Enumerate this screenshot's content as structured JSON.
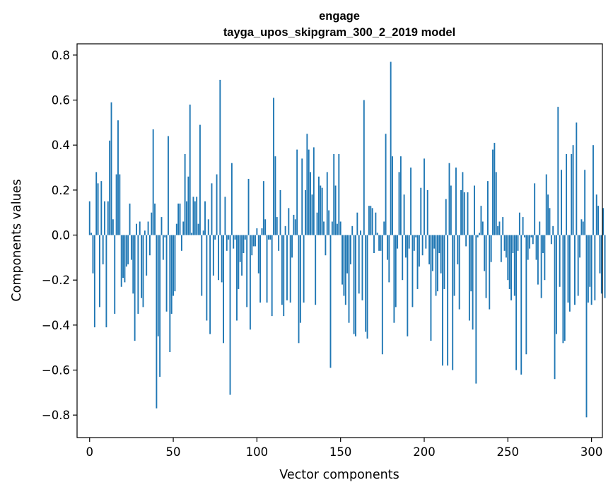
{
  "chart_data": {
    "type": "bar",
    "title": "engage",
    "subtitle": "tayga_upos_skipgram_300_2_2019 model",
    "xlabel": "Vector components",
    "ylabel": "Components values",
    "xlim": [
      -7.5,
      306.5
    ],
    "ylim": [
      -0.9,
      0.85
    ],
    "xticks": [
      0,
      50,
      100,
      150,
      200,
      250,
      300
    ],
    "xtick_labels": [
      "0",
      "50",
      "100",
      "150",
      "200",
      "250",
      "300"
    ],
    "yticks": [
      -0.8,
      -0.6,
      -0.4,
      -0.2,
      0.0,
      0.2,
      0.4,
      0.6,
      0.8
    ],
    "ytick_labels": [
      "−0.8",
      "−0.6",
      "−0.4",
      "−0.2",
      "0.0",
      "0.2",
      "0.4",
      "0.6",
      "0.8"
    ],
    "grid": false,
    "bar_color": "#1f77b4",
    "values": [
      0.15,
      0.01,
      -0.17,
      -0.41,
      0.28,
      0.23,
      -0.32,
      0.24,
      -0.13,
      0.15,
      -0.41,
      0.15,
      0.42,
      0.59,
      0.07,
      -0.35,
      0.27,
      0.51,
      0.27,
      -0.23,
      -0.19,
      -0.21,
      -0.14,
      -0.13,
      0.14,
      -0.11,
      -0.26,
      -0.47,
      0.05,
      -0.35,
      0.06,
      -0.28,
      -0.32,
      0.02,
      -0.18,
      0.06,
      -0.09,
      0.1,
      0.47,
      0.14,
      -0.77,
      -0.45,
      -0.63,
      0.08,
      -0.11,
      -0.01,
      -0.34,
      0.44,
      -0.52,
      -0.35,
      -0.27,
      -0.25,
      0.05,
      0.14,
      0.14,
      -0.07,
      0.06,
      0.36,
      0.15,
      0.26,
      0.58,
      0.01,
      0.17,
      0.15,
      0.17,
      0.05,
      0.49,
      -0.27,
      0.02,
      0.15,
      -0.38,
      0.07,
      -0.44,
      0.23,
      -0.18,
      -0.02,
      0.27,
      -0.2,
      0.69,
      -0.21,
      -0.48,
      0.17,
      -0.07,
      -0.02,
      -0.71,
      0.32,
      -0.06,
      -0.02,
      -0.38,
      -0.24,
      -0.12,
      -0.18,
      -0.08,
      -0.02,
      -0.32,
      0.25,
      -0.42,
      -0.09,
      -0.05,
      -0.05,
      0.03,
      -0.17,
      -0.3,
      0.03,
      0.24,
      0.07,
      -0.3,
      -0.02,
      -0.02,
      -0.36,
      0.61,
      0.35,
      0.08,
      -0.07,
      0.2,
      -0.31,
      -0.36,
      0.04,
      -0.29,
      0.12,
      -0.3,
      -0.1,
      0.09,
      0.07,
      0.38,
      -0.48,
      -0.39,
      0.34,
      -0.3,
      0.2,
      0.45,
      0.38,
      0.28,
      0.18,
      0.39,
      -0.31,
      0.1,
      0.26,
      0.22,
      0.21,
      0.06,
      -0.09,
      0.28,
      0.11,
      -0.59,
      0.06,
      0.36,
      0.22,
      0.05,
      0.36,
      0.06,
      -0.22,
      -0.27,
      -0.31,
      -0.17,
      -0.39,
      -0.13,
      0.04,
      -0.44,
      -0.45,
      0.1,
      -0.26,
      0.02,
      -0.29,
      0.6,
      -0.43,
      -0.46,
      0.13,
      0.13,
      0.12,
      -0.08,
      0.1,
      0.01,
      -0.07,
      -0.07,
      -0.53,
      0.06,
      0.45,
      -0.11,
      -0.21,
      0.77,
      0.35,
      -0.39,
      -0.32,
      -0.06,
      0.28,
      0.35,
      -0.2,
      0.18,
      -0.1,
      -0.45,
      -0.06,
      0.3,
      -0.32,
      -0.07,
      -0.01,
      -0.24,
      -0.14,
      0.21,
      -0.09,
      0.34,
      -0.06,
      0.2,
      -0.13,
      -0.47,
      -0.16,
      -0.06,
      -0.27,
      -0.25,
      -0.08,
      -0.17,
      -0.58,
      -0.24,
      0.16,
      -0.58,
      0.32,
      0.22,
      -0.6,
      -0.27,
      0.3,
      -0.13,
      -0.33,
      0.2,
      0.28,
      0.19,
      -0.05,
      0.19,
      -0.38,
      -0.25,
      -0.42,
      0.22,
      -0.66,
      -0.01,
      0.01,
      0.13,
      0.06,
      -0.16,
      -0.28,
      0.24,
      -0.33,
      -0.12,
      0.38,
      0.41,
      0.28,
      0.04,
      0.06,
      -0.12,
      0.08,
      -0.07,
      -0.1,
      -0.2,
      -0.24,
      -0.29,
      -0.08,
      -0.27,
      -0.6,
      -0.07,
      0.1,
      -0.62,
      0.08,
      -0.01,
      -0.53,
      -0.11,
      -0.06,
      -0.01,
      -0.04,
      0.23,
      -0.11,
      -0.22,
      0.06,
      -0.28,
      -0.08,
      -0.2,
      0.27,
      0.18,
      0.12,
      -0.04,
      0.04,
      -0.64,
      -0.44,
      0.57,
      -0.23,
      0.29,
      -0.48,
      -0.47,
      0.36,
      -0.3,
      -0.34,
      0.36,
      0.4,
      -0.31,
      0.5,
      -0.27,
      -0.1,
      0.07,
      0.06,
      0.29,
      -0.81,
      -0.3,
      -0.23,
      -0.31,
      0.4,
      -0.29,
      0.18,
      0.13,
      -0.17,
      -0.26,
      0.12,
      -0.28
    ]
  }
}
